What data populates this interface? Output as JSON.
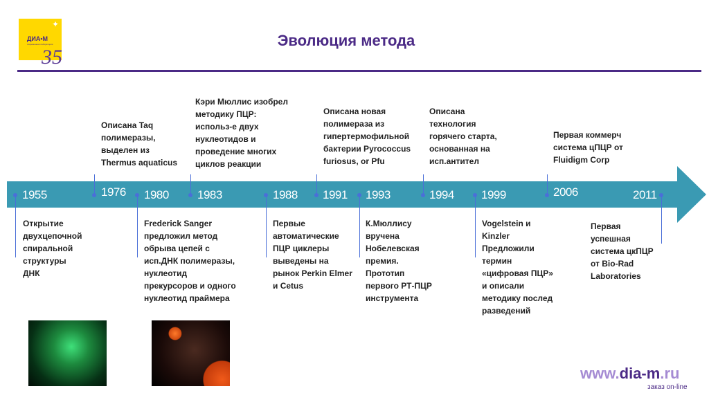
{
  "logo": {
    "brand": "ДИА•М",
    "subtitle": "современная лаборатория",
    "anniversary": "35"
  },
  "title": "Эволюция метода",
  "colors": {
    "band": "#3a9ab3",
    "accent": "#4b2a86",
    "marker": "#4a6fd8"
  },
  "events": [
    {
      "year": "1955",
      "text": "Открытие\nдвухцепочной\nспиральной\nструктуры\nДНК"
    },
    {
      "year": "1976",
      "text": "Описана Taq\nполимеразы,\nвыделен из\nThermus aquaticus"
    },
    {
      "year": "1980",
      "text": "Frederick Sanger\nпредложил метод\nобрыва цепей с\nисп.ДНК полимеразы,\nнуклеотид\nпрекурсоров и одного\nнуклеотид праймера"
    },
    {
      "year": "1983",
      "text": "Кэри Мюллис изобрел\nметодику ПЦР:\nиспольз-е двух\nнуклеотидов и\nпроведение многих\nциклов реакции"
    },
    {
      "year": "1988",
      "text": "Первые\nавтоматические\nПЦР циклеры\nвыведены на\nрынок Perkin Elmer\nи Cetus"
    },
    {
      "year": "1991",
      "text": "Описана новая\nполимераза из\nгипертермофильной\nбактерии Pyrococcus\nfuriosus, or Pfu"
    },
    {
      "year": "1993",
      "text": "К.Мюллису\nвручена\nНобелевская\nпремия.\nПрототип\nпервого РТ-ПЦР\nинструмента"
    },
    {
      "year": "1994",
      "text": "Описана\nтехнология\nгорячего старта,\nоснованная на\nисп.антител"
    },
    {
      "year": "1999",
      "text": "Vogelstein и\nKinzler\nПредложили\nтермин\n«цифровая ПЦР»\nи описали\nметодику послед\nразведений"
    },
    {
      "year": "2006",
      "text": "Первая коммерч\nсистема цПЦР от\nFluidigm Corp"
    },
    {
      "year": "2011",
      "text": "Первая\nуспешная\nсистема цкПЦР\nот Bio-Rad\nLaboratories"
    }
  ],
  "footer": {
    "www": "www.",
    "domain": "dia-m",
    "tld": ".ru",
    "order": "заказ on-line"
  }
}
